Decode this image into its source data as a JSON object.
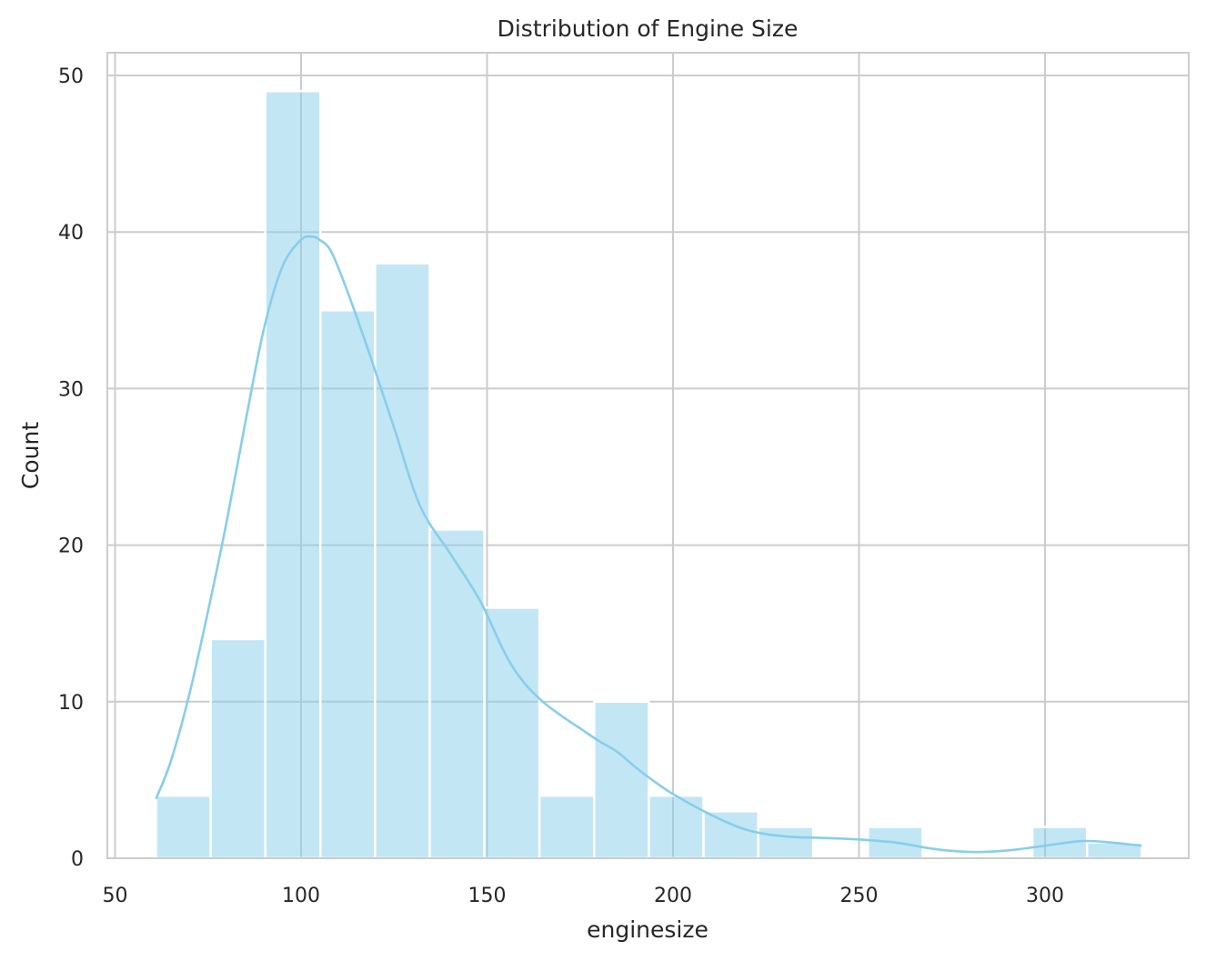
{
  "chart_data": {
    "type": "histogram",
    "title": "Distribution of Engine Size",
    "xlabel": "enginesize",
    "ylabel": "Count",
    "xlim": [
      50,
      340
    ],
    "ylim": [
      0,
      51.5
    ],
    "xticks": [
      50,
      100,
      150,
      200,
      250,
      300
    ],
    "yticks": [
      0,
      10,
      20,
      30,
      40,
      50
    ],
    "grid": true,
    "bar_color": "#87ceeb",
    "kde_color": "#87ceeb",
    "bins": [
      {
        "x0": 61.0,
        "x1": 75.7,
        "count": 4
      },
      {
        "x0": 75.7,
        "x1": 90.4,
        "count": 14
      },
      {
        "x0": 90.4,
        "x1": 105.2,
        "count": 49
      },
      {
        "x0": 105.2,
        "x1": 119.9,
        "count": 35
      },
      {
        "x0": 119.9,
        "x1": 134.6,
        "count": 38
      },
      {
        "x0": 134.6,
        "x1": 149.3,
        "count": 21
      },
      {
        "x0": 149.3,
        "x1": 164.1,
        "count": 16
      },
      {
        "x0": 164.1,
        "x1": 178.8,
        "count": 4
      },
      {
        "x0": 178.8,
        "x1": 193.5,
        "count": 10
      },
      {
        "x0": 193.5,
        "x1": 208.2,
        "count": 4
      },
      {
        "x0": 208.2,
        "x1": 222.9,
        "count": 3
      },
      {
        "x0": 222.9,
        "x1": 237.7,
        "count": 2
      },
      {
        "x0": 237.7,
        "x1": 252.4,
        "count": 0
      },
      {
        "x0": 252.4,
        "x1": 267.1,
        "count": 2
      },
      {
        "x0": 267.1,
        "x1": 281.8,
        "count": 0
      },
      {
        "x0": 281.8,
        "x1": 296.6,
        "count": 0
      },
      {
        "x0": 296.6,
        "x1": 311.3,
        "count": 2
      },
      {
        "x0": 311.3,
        "x1": 326.0,
        "count": 1
      }
    ],
    "kde": {
      "x": [
        61,
        65,
        70,
        75,
        80,
        85,
        90,
        95,
        100,
        103,
        105,
        108,
        112,
        118,
        125,
        132,
        140,
        148,
        155,
        160,
        165,
        170,
        175,
        180,
        185,
        190,
        195,
        200,
        210,
        220,
        230,
        240,
        250,
        260,
        270,
        280,
        290,
        300,
        310,
        318,
        326
      ],
      "y": [
        3.8,
        6.2,
        10.5,
        15.8,
        21.5,
        27.8,
        33.8,
        37.8,
        39.5,
        39.7,
        39.5,
        38.8,
        36.5,
        32.5,
        27.5,
        22.5,
        19.5,
        16.5,
        13.0,
        11.2,
        10.0,
        9.1,
        8.3,
        7.5,
        6.8,
        5.8,
        4.9,
        4.1,
        2.8,
        1.8,
        1.4,
        1.3,
        1.2,
        1.0,
        0.6,
        0.4,
        0.5,
        0.8,
        1.1,
        1.0,
        0.8
      ]
    }
  }
}
